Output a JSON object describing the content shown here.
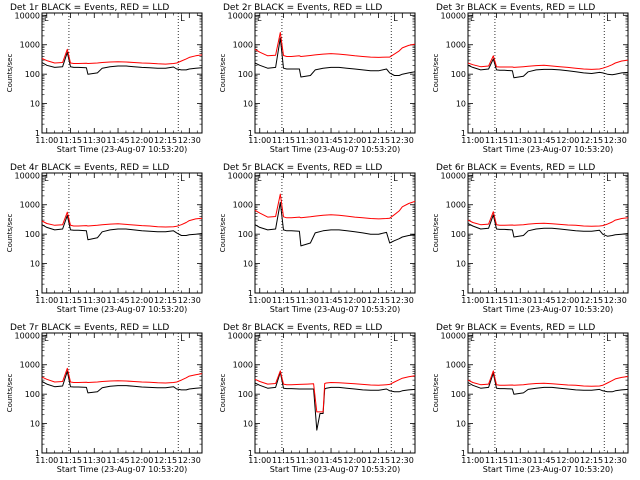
{
  "figure": {
    "common": {
      "xlabel": "Start Time (23-Aug-07 10:53:20)",
      "ylabel": "Counts/sec",
      "x_ticks": [
        "11:00",
        "11:15",
        "11:30",
        "11:45",
        "12:00",
        "12:15",
        "12:30"
      ],
      "y_ticks": [
        "1",
        "10",
        "100",
        "1000",
        "10000"
      ],
      "marker_glyph": "L",
      "colors": {
        "events": "#000000",
        "lld": "#ff0000",
        "axes": "#000000"
      }
    }
  },
  "chart_data": [
    {
      "type": "line",
      "title": "Det 1r BLACK = Events, RED = LLD",
      "xlabel": "Start Time (23-Aug-07 10:53:20)",
      "ylabel": "Counts/sec",
      "yscale": "log",
      "ylim": [
        1,
        12000
      ],
      "xlim_minutes": [
        -3,
        98
      ],
      "x_minutes": [
        -3,
        0,
        5,
        10,
        13,
        15,
        17,
        20,
        25,
        26,
        32,
        35,
        40,
        45,
        50,
        55,
        60,
        65,
        70,
        75,
        80,
        82,
        85,
        88,
        90,
        94,
        98
      ],
      "series": [
        {
          "name": "Events",
          "values": [
            250,
            200,
            170,
            180,
            550,
            180,
            170,
            170,
            165,
            100,
            110,
            160,
            180,
            190,
            190,
            180,
            170,
            165,
            160,
            160,
            175,
            150,
            140,
            140,
            150,
            160,
            165
          ]
        },
        {
          "name": "LLD",
          "values": [
            340,
            290,
            240,
            250,
            700,
            240,
            230,
            230,
            235,
            230,
            240,
            250,
            260,
            265,
            260,
            250,
            240,
            235,
            225,
            220,
            230,
            240,
            280,
            330,
            370,
            420,
            450
          ]
        }
      ],
      "vlines_minutes": [
        14,
        83
      ]
    },
    {
      "type": "line",
      "title": "Det 2r BLACK = Events, RED = LLD",
      "xlabel": "Start Time (23-Aug-07 10:53:20)",
      "ylabel": "Counts/sec",
      "yscale": "log",
      "ylim": [
        1,
        12000
      ],
      "xlim_minutes": [
        -3,
        98
      ],
      "x_minutes": [
        -3,
        0,
        5,
        10,
        13,
        15,
        17,
        20,
        25,
        26,
        32,
        35,
        40,
        45,
        50,
        55,
        60,
        65,
        70,
        75,
        80,
        82,
        85,
        88,
        90,
        94,
        98
      ],
      "series": [
        {
          "name": "Events",
          "values": [
            240,
            200,
            160,
            170,
            1700,
            160,
            150,
            150,
            150,
            80,
            90,
            140,
            160,
            170,
            170,
            160,
            150,
            140,
            130,
            130,
            150,
            110,
            90,
            90,
            100,
            110,
            120
          ]
        },
        {
          "name": "LLD",
          "values": [
            700,
            560,
            420,
            440,
            2600,
            430,
            400,
            400,
            420,
            400,
            430,
            450,
            480,
            500,
            480,
            450,
            420,
            400,
            380,
            370,
            380,
            380,
            480,
            620,
            780,
            950,
            1050
          ]
        }
      ],
      "vlines_minutes": [
        14,
        83
      ]
    },
    {
      "type": "line",
      "title": "Det 3r BLACK = Events, RED = LLD",
      "xlabel": "Start Time (23-Aug-07 10:53:20)",
      "ylabel": "Counts/sec",
      "yscale": "log",
      "ylim": [
        1,
        12000
      ],
      "xlim_minutes": [
        -3,
        98
      ],
      "x_minutes": [
        -3,
        0,
        5,
        10,
        13,
        15,
        17,
        20,
        25,
        26,
        32,
        35,
        40,
        45,
        50,
        55,
        60,
        65,
        70,
        75,
        80,
        82,
        85,
        88,
        90,
        94,
        98
      ],
      "series": [
        {
          "name": "Events",
          "values": [
            200,
            170,
            140,
            150,
            330,
            140,
            135,
            135,
            130,
            75,
            85,
            120,
            140,
            145,
            145,
            140,
            130,
            120,
            110,
            105,
            115,
            110,
            100,
            95,
            100,
            110,
            115
          ]
        },
        {
          "name": "LLD",
          "values": [
            240,
            210,
            180,
            190,
            420,
            180,
            175,
            175,
            175,
            170,
            180,
            185,
            195,
            200,
            190,
            180,
            170,
            160,
            150,
            145,
            150,
            160,
            180,
            210,
            240,
            280,
            300
          ]
        }
      ],
      "vlines_minutes": [
        14,
        83
      ]
    },
    {
      "type": "line",
      "title": "Det 4r BLACK = Events, RED = LLD",
      "xlabel": "Start Time (23-Aug-07 10:53:20)",
      "ylabel": "Counts/sec",
      "yscale": "log",
      "ylim": [
        1,
        12000
      ],
      "xlim_minutes": [
        -3,
        98
      ],
      "x_minutes": [
        -3,
        0,
        5,
        10,
        13,
        15,
        17,
        20,
        25,
        26,
        32,
        35,
        40,
        45,
        50,
        55,
        60,
        65,
        70,
        75,
        80,
        82,
        85,
        88,
        90,
        94,
        98
      ],
      "series": [
        {
          "name": "Events",
          "values": [
            210,
            170,
            140,
            150,
            430,
            140,
            135,
            135,
            130,
            65,
            75,
            120,
            140,
            150,
            150,
            140,
            130,
            125,
            120,
            120,
            130,
            110,
            90,
            90,
            95,
            100,
            105
          ]
        },
        {
          "name": "LLD",
          "values": [
            280,
            230,
            200,
            210,
            560,
            200,
            190,
            190,
            195,
            190,
            200,
            210,
            220,
            225,
            215,
            205,
            195,
            190,
            180,
            175,
            180,
            185,
            210,
            250,
            290,
            330,
            350
          ]
        }
      ],
      "vlines_minutes": [
        14,
        83
      ]
    },
    {
      "type": "line",
      "title": "Det 5r BLACK = Events, RED = LLD",
      "xlabel": "Start Time (23-Aug-07 10:53:20)",
      "ylabel": "Counts/sec",
      "yscale": "log",
      "ylim": [
        1,
        12000
      ],
      "xlim_minutes": [
        -3,
        98
      ],
      "x_minutes": [
        -3,
        0,
        5,
        10,
        13,
        15,
        17,
        20,
        25,
        26,
        32,
        35,
        40,
        45,
        50,
        55,
        60,
        65,
        70,
        75,
        80,
        82,
        85,
        88,
        90,
        94,
        98
      ],
      "series": [
        {
          "name": "Events",
          "values": [
            210,
            170,
            140,
            150,
            1200,
            140,
            130,
            130,
            125,
            40,
            50,
            110,
            130,
            140,
            140,
            130,
            120,
            110,
            100,
            100,
            115,
            50,
            60,
            70,
            80,
            90,
            95
          ]
        },
        {
          "name": "LLD",
          "values": [
            650,
            520,
            380,
            400,
            2300,
            390,
            360,
            360,
            380,
            360,
            390,
            410,
            440,
            460,
            440,
            410,
            380,
            360,
            340,
            330,
            340,
            350,
            460,
            620,
            850,
            1100,
            1300
          ]
        }
      ],
      "vlines_minutes": [
        14,
        83
      ]
    },
    {
      "type": "line",
      "title": "Det 6r BLACK = Events, RED = LLD",
      "xlabel": "Start Time (23-Aug-07 10:53:20)",
      "ylabel": "Counts/sec",
      "yscale": "log",
      "ylim": [
        1,
        12000
      ],
      "xlim_minutes": [
        -3,
        98
      ],
      "x_minutes": [
        -3,
        0,
        5,
        10,
        13,
        15,
        17,
        20,
        25,
        26,
        32,
        35,
        40,
        45,
        50,
        55,
        60,
        65,
        70,
        75,
        80,
        82,
        85,
        88,
        90,
        94,
        98
      ],
      "series": [
        {
          "name": "Events",
          "values": [
            230,
            190,
            150,
            160,
            450,
            150,
            145,
            145,
            140,
            80,
            90,
            130,
            150,
            160,
            160,
            150,
            140,
            130,
            125,
            125,
            135,
            100,
            85,
            90,
            95,
            100,
            105
          ]
        },
        {
          "name": "LLD",
          "values": [
            300,
            250,
            210,
            220,
            580,
            210,
            200,
            200,
            205,
            200,
            210,
            220,
            230,
            235,
            225,
            215,
            205,
            200,
            190,
            185,
            190,
            195,
            220,
            260,
            300,
            340,
            360
          ]
        }
      ],
      "vlines_minutes": [
        14,
        83
      ]
    },
    {
      "type": "line",
      "title": "Det 7r BLACK = Events, RED = LLD",
      "xlabel": "Start Time (23-Aug-07 10:53:20)",
      "ylabel": "Counts/sec",
      "yscale": "log",
      "ylim": [
        1,
        12000
      ],
      "xlim_minutes": [
        -3,
        98
      ],
      "x_minutes": [
        -3,
        0,
        5,
        10,
        13,
        15,
        17,
        20,
        25,
        26,
        32,
        35,
        40,
        45,
        50,
        55,
        60,
        65,
        70,
        75,
        80,
        82,
        85,
        88,
        90,
        94,
        98
      ],
      "series": [
        {
          "name": "Events",
          "values": [
            270,
            220,
            180,
            190,
            600,
            180,
            175,
            175,
            170,
            110,
            120,
            165,
            185,
            195,
            195,
            185,
            175,
            170,
            165,
            165,
            180,
            150,
            140,
            140,
            150,
            160,
            165
          ]
        },
        {
          "name": "LLD",
          "values": [
            380,
            320,
            260,
            270,
            760,
            260,
            250,
            250,
            255,
            250,
            260,
            270,
            280,
            285,
            280,
            270,
            260,
            255,
            245,
            240,
            250,
            260,
            300,
            360,
            410,
            460,
            500
          ]
        }
      ],
      "vlines_minutes": [
        14,
        83
      ]
    },
    {
      "type": "line",
      "title": "Det 8r BLACK = Events, RED = LLD",
      "xlabel": "Start Time (23-Aug-07 10:53:20)",
      "ylabel": "Counts/sec",
      "yscale": "log",
      "ylim": [
        1,
        12000
      ],
      "xlim_minutes": [
        -3,
        98
      ],
      "x_minutes": [
        -3,
        0,
        5,
        10,
        13,
        15,
        17,
        20,
        25,
        30,
        34,
        36,
        38,
        40,
        41,
        42,
        45,
        50,
        55,
        60,
        65,
        70,
        75,
        80,
        82,
        85,
        88,
        90,
        94,
        98
      ],
      "series": [
        {
          "name": "Events",
          "values": [
            240,
            200,
            160,
            170,
            560,
            160,
            155,
            155,
            150,
            150,
            150,
            6,
            22,
            22,
            150,
            160,
            170,
            170,
            160,
            150,
            140,
            135,
            135,
            150,
            130,
            120,
            120,
            130,
            140,
            145
          ]
        },
        {
          "name": "LLD",
          "values": [
            320,
            270,
            220,
            230,
            620,
            220,
            210,
            210,
            215,
            220,
            225,
            25,
            25,
            25,
            230,
            240,
            250,
            245,
            235,
            225,
            215,
            205,
            200,
            210,
            215,
            260,
            310,
            350,
            390,
            420
          ]
        }
      ],
      "vlines_minutes": [
        14,
        83
      ]
    },
    {
      "type": "line",
      "title": "Det 9r BLACK = Events, RED = LLD",
      "xlabel": "Start Time (23-Aug-07 10:53:20)",
      "ylabel": "Counts/sec",
      "yscale": "log",
      "ylim": [
        1,
        12000
      ],
      "xlim_minutes": [
        -3,
        98
      ],
      "x_minutes": [
        -3,
        0,
        5,
        10,
        13,
        15,
        17,
        20,
        25,
        26,
        32,
        35,
        40,
        45,
        50,
        55,
        60,
        65,
        70,
        75,
        80,
        82,
        85,
        88,
        90,
        94,
        98
      ],
      "series": [
        {
          "name": "Events",
          "values": [
            250,
            200,
            160,
            170,
            520,
            160,
            155,
            155,
            150,
            100,
            110,
            145,
            160,
            170,
            170,
            160,
            150,
            140,
            135,
            135,
            145,
            130,
            120,
            120,
            130,
            140,
            145
          ]
        },
        {
          "name": "LLD",
          "values": [
            300,
            250,
            210,
            220,
            620,
            210,
            200,
            200,
            205,
            200,
            210,
            220,
            230,
            235,
            225,
            215,
            205,
            200,
            190,
            185,
            190,
            200,
            240,
            290,
            330,
            370,
            400
          ]
        }
      ],
      "vlines_minutes": [
        14,
        83
      ]
    }
  ]
}
